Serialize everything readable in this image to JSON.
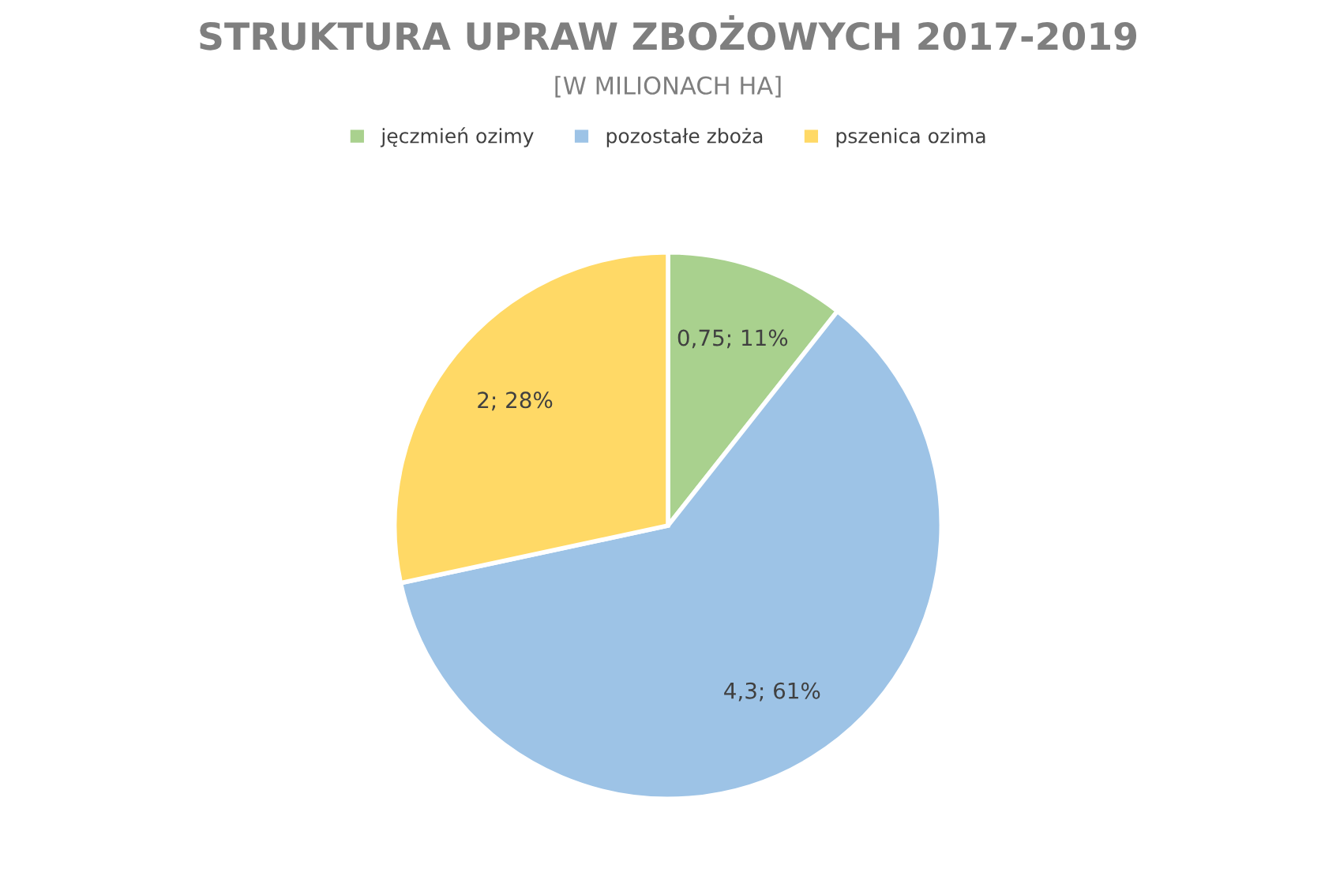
{
  "chart_data": {
    "type": "pie",
    "title": "STRUKTURA UPRAW ZBOŻOWYCH 2017-2019",
    "subtitle": "[W MILIONACH HA]",
    "categories": [
      "jęczmień ozimy",
      "pozostałe zboża",
      "pszenica ozima"
    ],
    "values": [
      0.75,
      4.3,
      2
    ],
    "value_labels": [
      "0,75; 11%",
      "4,3; 61%",
      "2; 28%"
    ],
    "colors": [
      "#a9d18e",
      "#9dc3e6",
      "#ffd966"
    ],
    "legend": "top"
  }
}
